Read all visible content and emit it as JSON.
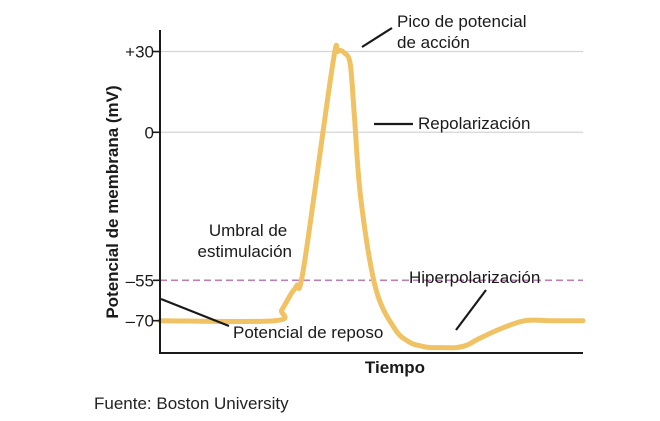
{
  "chart_data": {
    "type": "line",
    "title": "",
    "xlabel": "Tiempo",
    "ylabel": "Potencial de membrana (mV)",
    "y_ticks": [
      {
        "value": 30,
        "label": "+30"
      },
      {
        "value": 0,
        "label": "0"
      },
      {
        "value": -55,
        "label": "–55"
      },
      {
        "value": -70,
        "label": "–70"
      }
    ],
    "ylim": [
      -82,
      38
    ],
    "xlim": [
      0,
      100
    ],
    "gridlines": [
      30,
      0
    ],
    "threshold": {
      "value": -55,
      "style": "dashed",
      "color": "#b882b2"
    },
    "line_color": "#f0c264",
    "series": [
      {
        "x": [
          0,
          27.1,
          28.8,
          31.0,
          32.3,
          34.0,
          40.8,
          42.0,
          43.6,
          45.0,
          46.0,
          47.5,
          51.0,
          55.5,
          59.0,
          62.0,
          64.0,
          67.0,
          70.0,
          72.7,
          75.0,
          80.5,
          86.3,
          92.5,
          96.0,
          100
        ],
        "y": [
          -70,
          -70,
          -66,
          -60,
          -57,
          -50,
          25,
          30,
          29.5,
          25,
          5,
          -25,
          -58,
          -73,
          -78,
          -79.5,
          -80,
          -80,
          -80,
          -79,
          -77,
          -73,
          -70,
          -70,
          -70,
          -70
        ]
      }
    ],
    "annotations": [
      {
        "id": "peak",
        "lines": [
          "Pico de potencial",
          "de acción"
        ]
      },
      {
        "id": "repol",
        "lines": [
          "Repolarización"
        ]
      },
      {
        "id": "threshold",
        "lines": [
          "Umbral de",
          "estimulación"
        ]
      },
      {
        "id": "hyper",
        "lines": [
          "Hiperpolarización"
        ]
      },
      {
        "id": "rest",
        "lines": [
          "Potencial de reposo"
        ]
      }
    ]
  },
  "source": "Fuente: Boston University"
}
